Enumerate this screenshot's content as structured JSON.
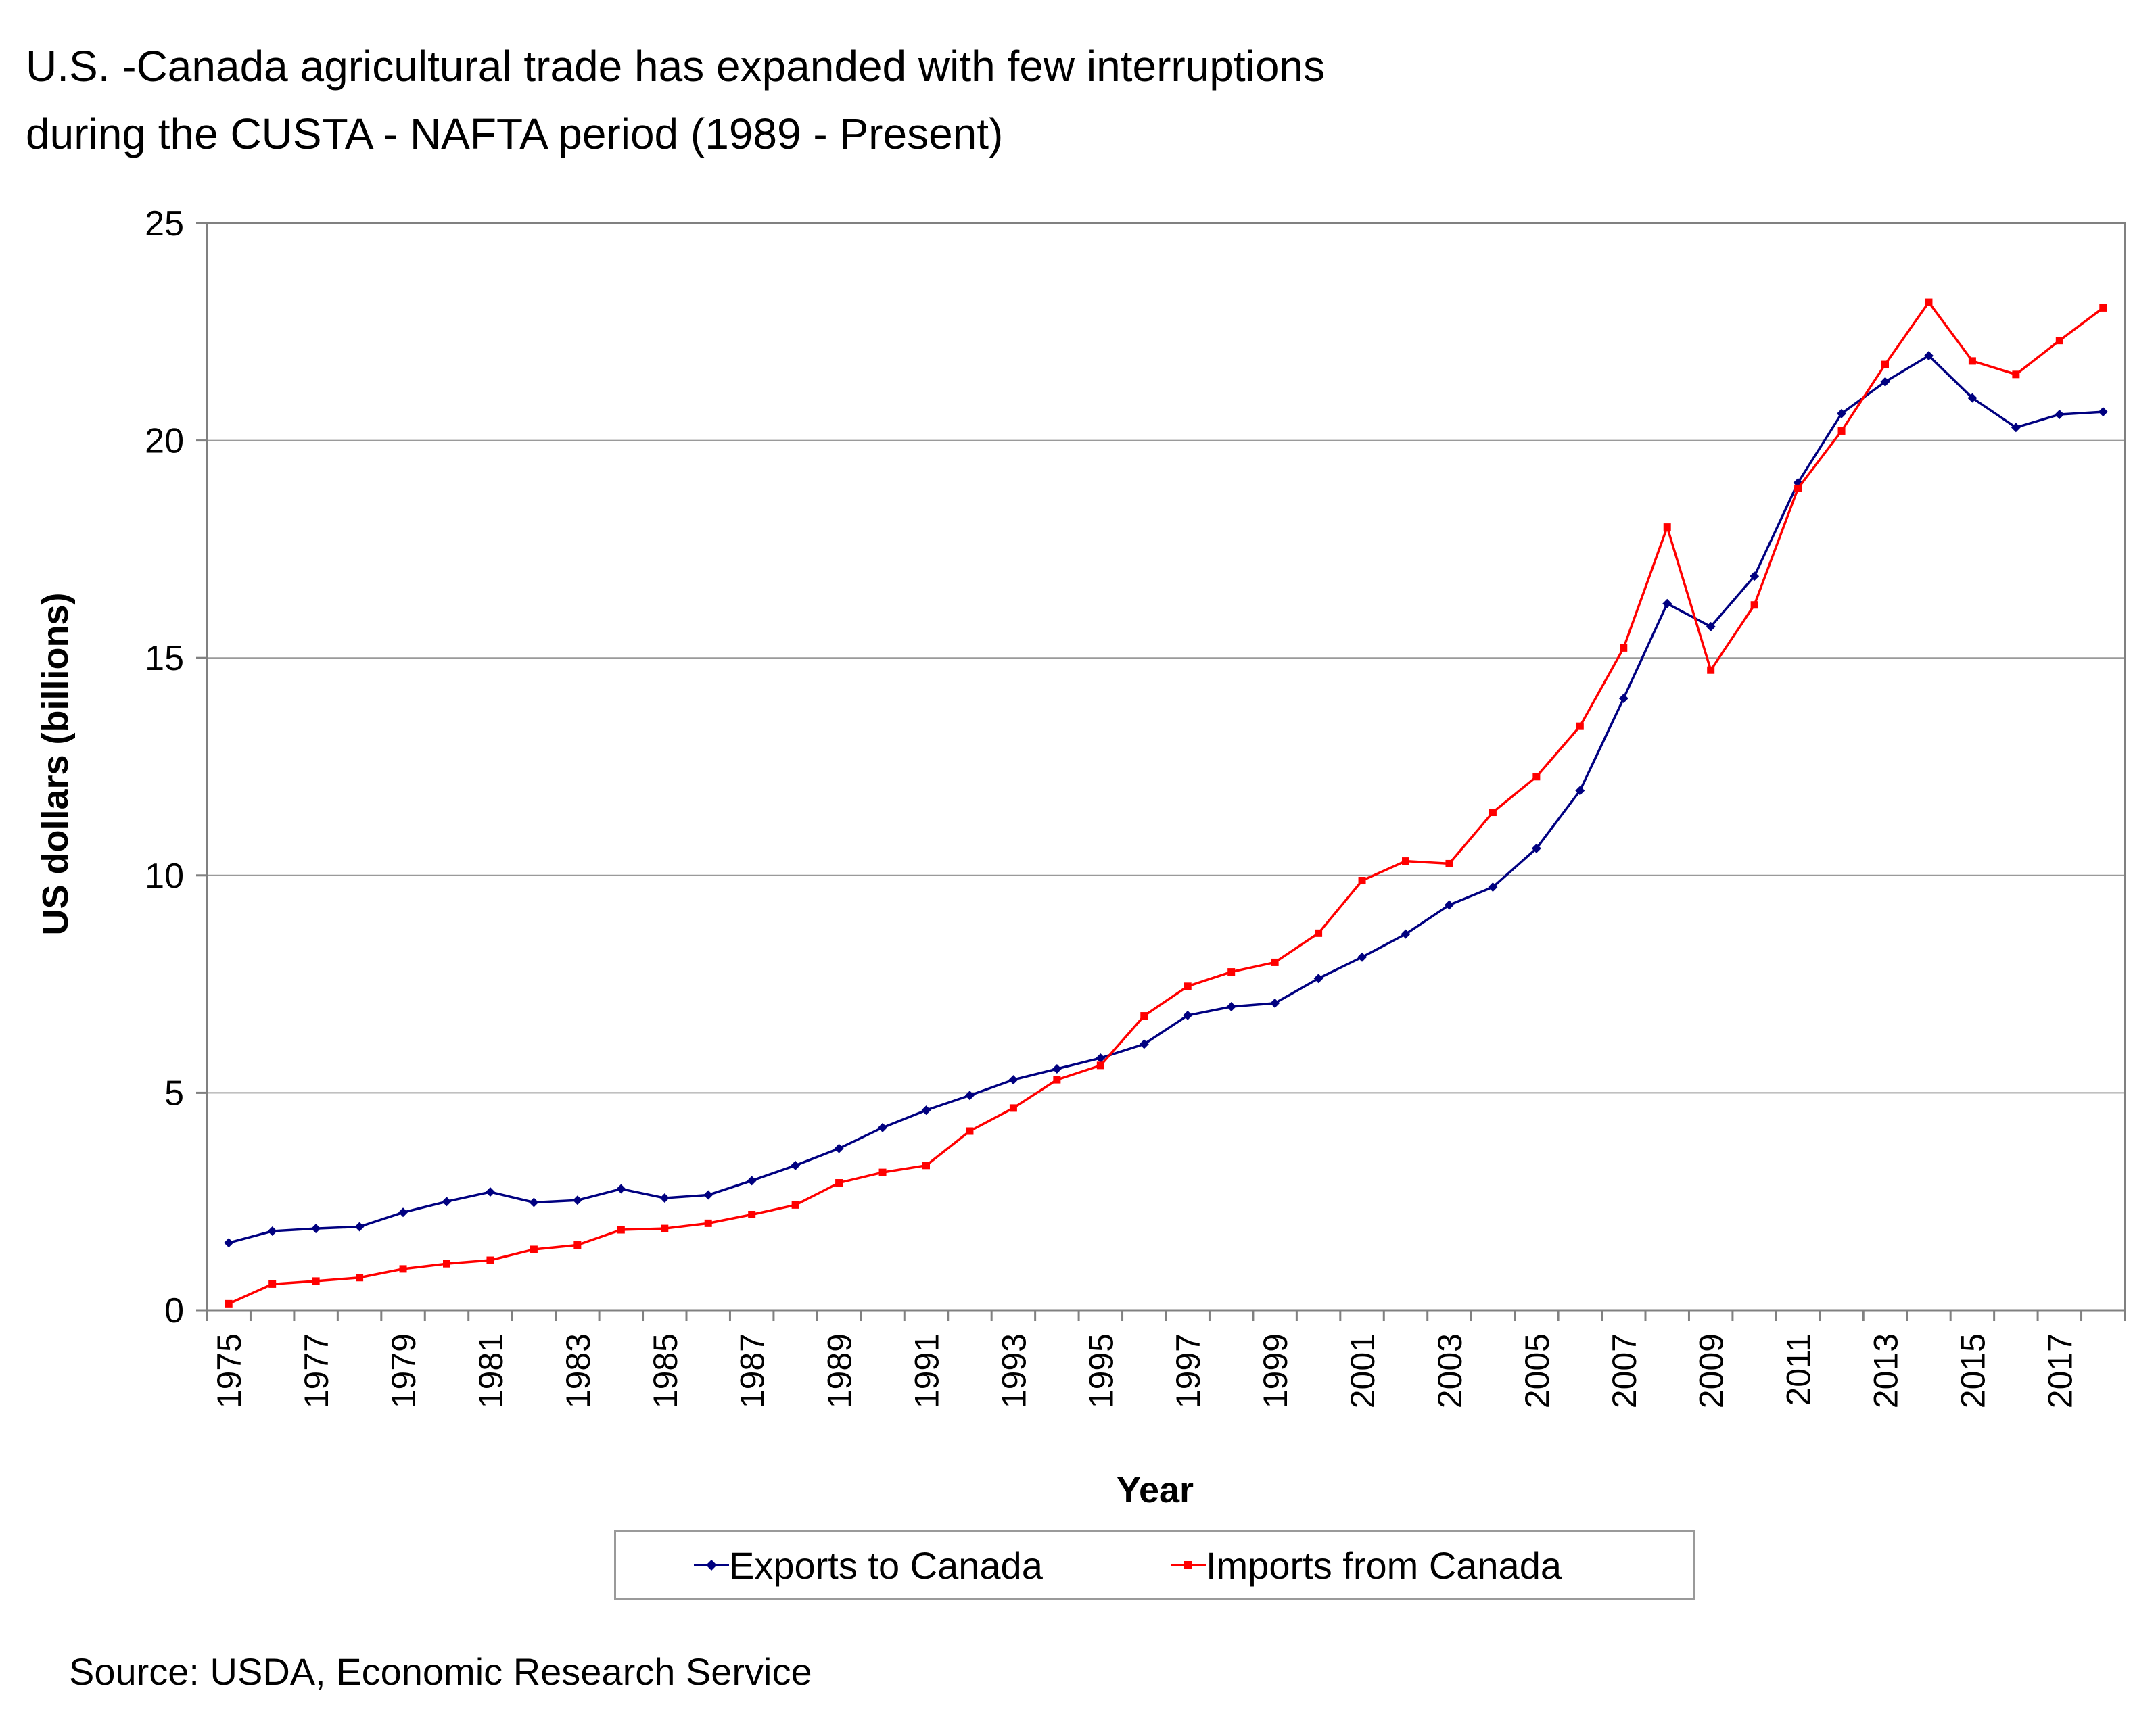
{
  "title_lines": [
    "U.S. -Canada agricultural trade has expanded with few interruptions",
    "during  the CUSTA - NAFTA period (1989 - Present)"
  ],
  "source": "Source: USDA, Economic Research Service",
  "colors": {
    "exports": "#000080",
    "imports": "#ff0000",
    "grid": "#9a9a9a",
    "axis": "#808080"
  },
  "chart_data": {
    "type": "line",
    "xlabel": "Year",
    "ylabel": "US dollars (billions)",
    "ylim": [
      0,
      25
    ],
    "yticks": [
      "0",
      "5",
      "10",
      "15",
      "20",
      "25"
    ],
    "grid": true,
    "legend_position": "bottom",
    "x": [
      1975,
      1976,
      1977,
      1978,
      1979,
      1980,
      1981,
      1982,
      1983,
      1984,
      1985,
      1986,
      1987,
      1988,
      1989,
      1990,
      1991,
      1992,
      1993,
      1994,
      1995,
      1996,
      1997,
      1998,
      1999,
      2000,
      2001,
      2002,
      2003,
      2004,
      2005,
      2006,
      2007,
      2008,
      2009,
      2010,
      2011,
      2012,
      2013,
      2014,
      2015,
      2016,
      2017,
      2018
    ],
    "xtick_labels": [
      "1975",
      "1977",
      "1979",
      "1981",
      "1983",
      "1985",
      "1987",
      "1989",
      "1991",
      "1993",
      "1995",
      "1997",
      "1999",
      "2001",
      "2003",
      "2005",
      "2007",
      "2009",
      "2011",
      "2013",
      "2015",
      "2017"
    ],
    "series": [
      {
        "name": "Exports to Canada",
        "values": [
          1.55,
          1.82,
          1.88,
          1.92,
          2.25,
          2.5,
          2.72,
          2.48,
          2.53,
          2.79,
          2.58,
          2.65,
          2.98,
          3.33,
          3.72,
          4.2,
          4.6,
          4.94,
          5.3,
          5.55,
          5.8,
          6.12,
          6.78,
          6.98,
          7.06,
          7.63,
          8.12,
          8.65,
          9.32,
          9.73,
          10.62,
          11.95,
          14.07,
          16.25,
          15.72,
          16.88,
          19.03,
          20.62,
          21.35,
          21.95,
          20.98,
          20.3,
          20.6,
          20.66
        ]
      },
      {
        "name": "Imports from Canada",
        "values": [
          0.15,
          0.6,
          0.67,
          0.75,
          0.95,
          1.07,
          1.15,
          1.4,
          1.5,
          1.85,
          1.88,
          2.0,
          2.2,
          2.42,
          2.93,
          3.17,
          3.33,
          4.12,
          4.65,
          5.3,
          5.63,
          6.77,
          7.45,
          7.78,
          8.0,
          8.67,
          9.88,
          10.33,
          10.27,
          11.45,
          12.27,
          13.43,
          15.23,
          18.01,
          14.72,
          16.22,
          18.9,
          20.22,
          21.75,
          23.18,
          21.83,
          21.52,
          22.3,
          23.05
        ]
      }
    ]
  }
}
